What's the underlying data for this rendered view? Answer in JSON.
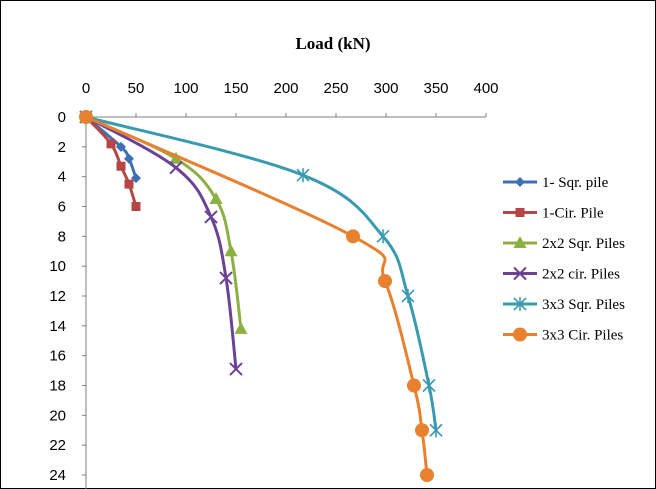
{
  "chart_data": {
    "type": "line",
    "title": "Load (kN)",
    "xlabel": "",
    "ylabel": "",
    "xlim": [
      0,
      400
    ],
    "ylim": [
      0,
      24
    ],
    "y_inverted": true,
    "x_axis_position": "top",
    "x_ticks": [
      0,
      50,
      100,
      150,
      200,
      250,
      300,
      350,
      400
    ],
    "y_ticks": [
      0,
      2,
      4,
      6,
      8,
      10,
      12,
      14,
      16,
      18,
      20,
      22,
      24
    ],
    "grid": false,
    "legend_position": "right",
    "series": [
      {
        "name": "1- Sqr. pile",
        "color": "#3e6fb5",
        "marker": "diamond",
        "points": [
          [
            0,
            0
          ],
          [
            35,
            2
          ],
          [
            43,
            2.8
          ],
          [
            50,
            4.1
          ]
        ]
      },
      {
        "name": "1-Cir. Pile",
        "color": "#b64545",
        "marker": "square",
        "points": [
          [
            0,
            0
          ],
          [
            25,
            1.8
          ],
          [
            35,
            3.3
          ],
          [
            43,
            4.5
          ],
          [
            50,
            6
          ]
        ]
      },
      {
        "name": "2x2 Sqr. Piles",
        "color": "#8cb043",
        "marker": "triangle",
        "points": [
          [
            0,
            0
          ],
          [
            90,
            2.8
          ],
          [
            130,
            5.5
          ],
          [
            145,
            9
          ],
          [
            155,
            14.2
          ]
        ]
      },
      {
        "name": "2x2 cir. Piles",
        "color": "#6b4296",
        "marker": "x",
        "points": [
          [
            0,
            0
          ],
          [
            90,
            3.4
          ],
          [
            125,
            6.7
          ],
          [
            140,
            10.8
          ],
          [
            150,
            16.9
          ]
        ]
      },
      {
        "name": "3x3 Sqr. Piles",
        "color": "#3a9ab0",
        "marker": "star",
        "points": [
          [
            0,
            0
          ],
          [
            217,
            3.9
          ],
          [
            297,
            8
          ],
          [
            322,
            12
          ],
          [
            343,
            18
          ],
          [
            350,
            21
          ]
        ]
      },
      {
        "name": "3x3 Cir. Piles",
        "color": "#e8812e",
        "marker": "circle",
        "points": [
          [
            0,
            0
          ],
          [
            267,
            8
          ],
          [
            299,
            11
          ],
          [
            328,
            18
          ],
          [
            336,
            21
          ],
          [
            341,
            24
          ]
        ]
      }
    ]
  }
}
